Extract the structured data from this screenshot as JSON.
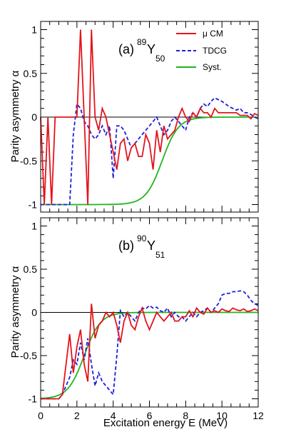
{
  "chart_data": [
    {
      "type": "line",
      "panel_label": "(a)",
      "isotope": {
        "mass": "89",
        "symbol": "Y",
        "n": "50"
      },
      "xlabel": "",
      "ylabel": "Parity asymmetry   α",
      "xlim": [
        0,
        12
      ],
      "ylim": [
        -1.1,
        1.1
      ],
      "x_ticks": [],
      "y_ticks": [
        "1",
        "0.5",
        "0",
        "-0.5",
        "-1"
      ],
      "legend": {
        "position": "top-right"
      },
      "series": [
        {
          "name": "μ CM",
          "color": "#e4141c",
          "dash": "solid",
          "x": [
            0.0,
            0.2,
            0.4,
            0.6,
            0.8,
            1.0,
            1.2,
            1.4,
            1.6,
            1.8,
            2.0,
            2.2,
            2.4,
            2.6,
            2.8,
            3.0,
            3.2,
            3.4,
            3.6,
            3.8,
            4.0,
            4.2,
            4.4,
            4.6,
            4.8,
            5.0,
            5.2,
            5.4,
            5.6,
            5.8,
            6.0,
            6.2,
            6.4,
            6.6,
            6.8,
            7.0,
            7.2,
            7.4,
            7.6,
            7.8,
            8.0,
            8.2,
            8.4,
            8.6,
            8.8,
            9.0,
            9.2,
            9.4,
            9.6,
            9.8,
            10.0,
            10.2,
            10.4,
            10.6,
            10.8,
            11.0,
            11.2,
            11.4,
            11.6,
            11.8,
            12.0
          ],
          "y": [
            0,
            -1,
            0,
            -1,
            0,
            0,
            0,
            0,
            0,
            0,
            0,
            1,
            0,
            -1,
            1,
            0,
            -0.15,
            0.1,
            0,
            -0.2,
            -0.4,
            -0.6,
            -0.3,
            -0.25,
            -0.5,
            -0.35,
            -0.3,
            -0.45,
            -0.45,
            -0.2,
            -0.3,
            -0.6,
            -0.15,
            -0.4,
            -0.1,
            -0.25,
            -0.2,
            -0.15,
            0,
            0.1,
            0,
            -0.05,
            0.05,
            0,
            0.1,
            0.05,
            0.05,
            0,
            0.1,
            0.05,
            0.05,
            0.05,
            0.05,
            0.05,
            0.05,
            0.02,
            0.02,
            0.02,
            -0.02,
            0.04,
            0.02
          ]
        },
        {
          "name": "TDCG",
          "color": "#1f1fd8",
          "dash": "dashed",
          "x": [
            0.0,
            1.6,
            1.8,
            2.0,
            2.2,
            2.4,
            2.6,
            2.8,
            3.0,
            3.2,
            3.4,
            3.6,
            3.8,
            4.0,
            4.2,
            4.4,
            4.6,
            4.8,
            5.0,
            5.2,
            5.4,
            5.6,
            5.8,
            6.0,
            6.2,
            6.4,
            6.6,
            6.8,
            7.0,
            7.2,
            7.4,
            7.6,
            7.8,
            8.0,
            8.2,
            8.4,
            8.6,
            8.8,
            9.0,
            9.2,
            9.4,
            9.6,
            9.8,
            10.0,
            10.2,
            10.4,
            10.6,
            10.8,
            11.0,
            11.2,
            11.4,
            11.6,
            11.8,
            12.0
          ],
          "y": [
            -1,
            -1,
            -0.2,
            0.15,
            0.1,
            -0.05,
            -0.1,
            -0.2,
            -0.25,
            -0.2,
            -0.1,
            -0.2,
            -0.1,
            -0.7,
            -0.1,
            -0.1,
            -0.15,
            -0.25,
            -0.35,
            -0.3,
            -0.25,
            -0.2,
            -0.15,
            -0.1,
            -0.05,
            0,
            -0.1,
            -0.2,
            -0.15,
            -0.05,
            0,
            -0.05,
            -0.1,
            -0.15,
            0,
            0.05,
            0,
            0.1,
            0.15,
            0.12,
            0.18,
            0.22,
            0.2,
            0.18,
            0.15,
            0.12,
            0.1,
            0.08,
            0.1,
            0.05,
            0.05,
            0.03,
            0,
            -0.02
          ]
        },
        {
          "name": "Syst.",
          "color": "#1fb51f",
          "dash": "solid",
          "kind": "sigmoid",
          "x0": 6.7,
          "width": 0.45
        }
      ]
    },
    {
      "type": "line",
      "panel_label": "(b)",
      "isotope": {
        "mass": "90",
        "symbol": "Y",
        "n": "51"
      },
      "xlabel": "Excitation energy E (MeV)",
      "ylabel": "Parity asymmetry   α",
      "xlim": [
        0,
        12
      ],
      "ylim": [
        -1.1,
        1.1
      ],
      "x_ticks": [
        "0",
        "2",
        "4",
        "6",
        "8",
        "10",
        "12"
      ],
      "y_ticks": [
        "1",
        "0.5",
        "0",
        "-0.5",
        "-1"
      ],
      "series": [
        {
          "name": "μ CM",
          "color": "#e4141c",
          "dash": "solid",
          "x": [
            0.0,
            1.0,
            1.2,
            1.4,
            1.6,
            1.8,
            2.0,
            2.2,
            2.4,
            2.6,
            2.8,
            3.0,
            3.2,
            3.4,
            3.6,
            3.8,
            4.0,
            4.2,
            4.4,
            4.6,
            4.8,
            5.0,
            5.2,
            5.4,
            5.6,
            5.8,
            6.0,
            6.2,
            6.4,
            6.6,
            6.8,
            7.0,
            7.2,
            7.4,
            7.6,
            7.8,
            8.0,
            8.2,
            8.4,
            8.6,
            8.8,
            9.0,
            9.2,
            9.4,
            9.6,
            9.8,
            10.0,
            10.2,
            10.4,
            10.6,
            10.8,
            11.0,
            11.2,
            11.4,
            11.6,
            11.8,
            12.0
          ],
          "y": [
            -1,
            -1,
            -0.95,
            -0.6,
            -0.25,
            -0.7,
            -0.4,
            -0.2,
            -0.6,
            -0.8,
            0.1,
            -0.3,
            -0.15,
            -0.1,
            0,
            -0.05,
            0,
            -0.15,
            -0.35,
            -0.1,
            0,
            -0.15,
            -0.2,
            -0.05,
            0.05,
            -0.1,
            -0.2,
            -0.1,
            0,
            -0.05,
            -0.1,
            -0.05,
            0,
            -0.1,
            -0.1,
            -0.05,
            -0.05,
            0.02,
            -0.05,
            0.05,
            0,
            -0.02,
            0.05,
            0,
            0.02,
            0,
            0.04,
            0.02,
            0.01,
            0.05,
            0.03,
            0.02,
            0.04,
            0.01,
            0.02,
            0.04,
            0.02
          ]
        },
        {
          "name": "TDCG",
          "color": "#1f1fd8",
          "dash": "dashed",
          "x": [
            0.0,
            1.0,
            1.2,
            1.4,
            1.6,
            1.8,
            2.0,
            2.2,
            2.4,
            2.6,
            2.8,
            3.0,
            3.2,
            3.4,
            3.6,
            3.8,
            4.0,
            4.2,
            4.4,
            4.6,
            4.8,
            5.0,
            5.2,
            5.4,
            5.6,
            5.8,
            6.0,
            6.2,
            6.4,
            6.6,
            6.8,
            7.0,
            7.2,
            7.4,
            7.6,
            7.8,
            8.0,
            8.2,
            8.4,
            8.6,
            8.8,
            9.0,
            9.2,
            9.4,
            9.6,
            9.8,
            10.0,
            10.2,
            10.4,
            10.6,
            10.8,
            11.0,
            11.2,
            11.4,
            11.6,
            11.8,
            12.0
          ],
          "y": [
            -1,
            -1,
            -0.95,
            -0.85,
            -0.75,
            -0.55,
            -0.6,
            -0.35,
            -0.55,
            -0.3,
            -0.6,
            -0.85,
            -0.7,
            -0.8,
            -0.85,
            -0.9,
            -0.95,
            -0.5,
            0.02,
            -0.05,
            0,
            -0.05,
            -0.1,
            0,
            0.05,
            0.04,
            0.08,
            0.05,
            0.06,
            0.02,
            0,
            0.05,
            -0.05,
            0,
            -0.05,
            -0.05,
            -0.1,
            -0.05,
            0,
            -0.05,
            0,
            0.02,
            0.05,
            0,
            0.05,
            0.1,
            0.2,
            0.22,
            0.22,
            0.24,
            0.24,
            0.25,
            0.24,
            0.2,
            0.14,
            0.1,
            0.08
          ]
        },
        {
          "name": "Syst.",
          "color": "#1fb51f",
          "dash": "solid",
          "kind": "sigmoid",
          "x0": 2.4,
          "width": 0.45
        }
      ]
    }
  ]
}
